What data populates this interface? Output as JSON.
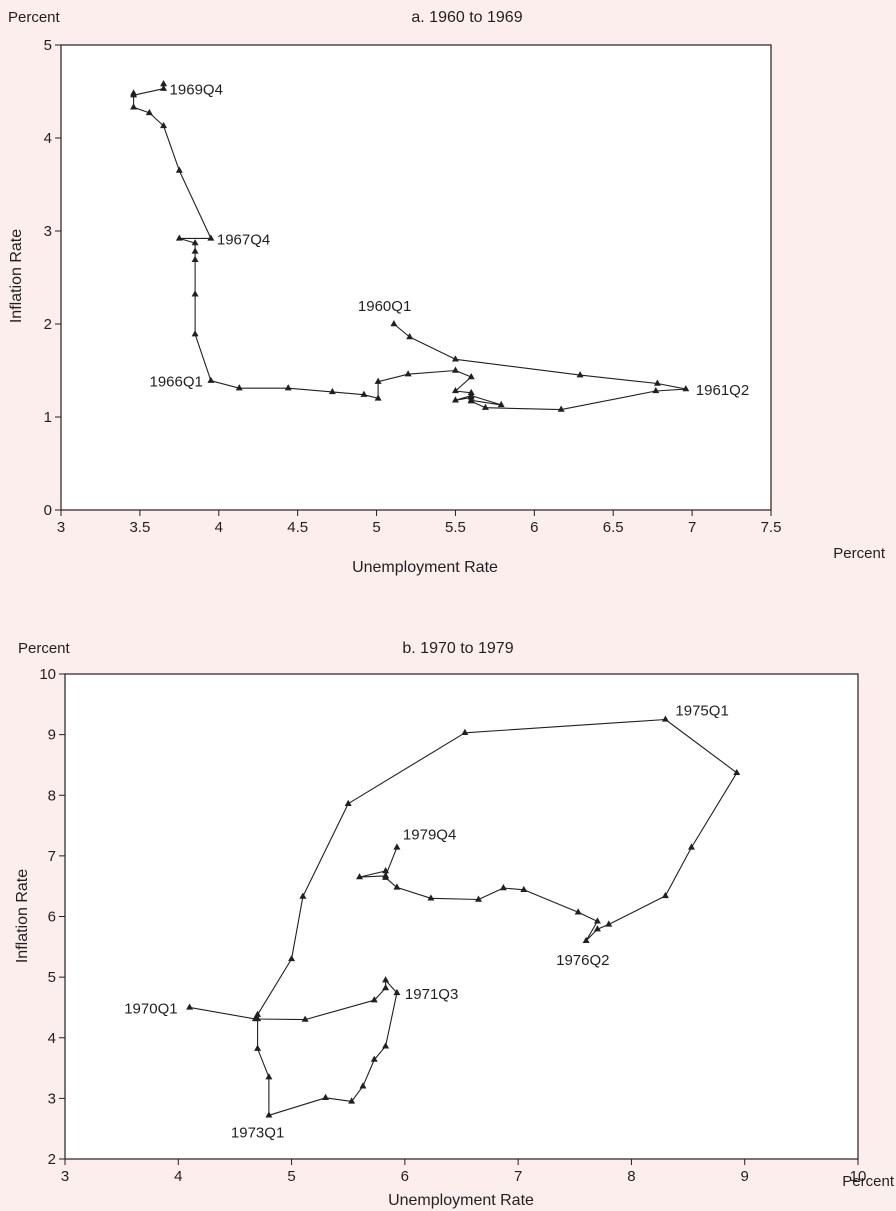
{
  "chart_data": [
    {
      "type": "line",
      "title": "a. 1960 to 1969",
      "xlabel": "Unemployment Rate",
      "ylabel": "Inflation Rate",
      "x_unit": "Percent",
      "y_unit": "Percent",
      "xlim": [
        3,
        7.5
      ],
      "ylim": [
        0,
        5
      ],
      "xticks": [
        3,
        3.5,
        4,
        4.5,
        5,
        5.5,
        6,
        6.5,
        7,
        7.5
      ],
      "yticks": [
        0,
        1,
        2,
        3,
        4,
        5
      ],
      "grid": false,
      "series": [
        {
          "x": [
            5.11,
            5.21,
            5.5,
            6.29,
            6.78,
            6.96,
            6.77,
            6.17,
            5.69,
            5.6,
            5.6,
            5.5,
            5.6,
            5.79,
            5.6,
            5.6,
            5.5,
            5.6,
            5.5,
            5.2,
            5.01,
            5.01,
            4.92,
            4.72,
            4.44,
            4.13,
            3.95,
            3.85,
            3.85,
            3.85,
            3.85,
            3.85,
            3.75,
            3.95,
            3.75,
            3.65,
            3.56,
            3.46,
            3.46,
            3.46,
            3.65,
            3.65
          ],
          "y": [
            2.0,
            1.86,
            1.62,
            1.45,
            1.36,
            1.3,
            1.28,
            1.08,
            1.1,
            1.17,
            1.21,
            1.18,
            1.23,
            1.13,
            1.18,
            1.26,
            1.28,
            1.43,
            1.5,
            1.46,
            1.38,
            1.2,
            1.24,
            1.27,
            1.31,
            1.31,
            1.39,
            1.89,
            2.32,
            2.69,
            2.78,
            2.87,
            2.92,
            2.92,
            3.65,
            4.13,
            4.27,
            4.33,
            4.48,
            4.46,
            4.53,
            4.58
          ]
        }
      ],
      "annotations": [
        {
          "text": "1960Q1",
          "x": 5.11,
          "y": 2.0
        },
        {
          "text": "1961Q2",
          "x": 6.96,
          "y": 1.3
        },
        {
          "text": "1966Q1",
          "x": 3.95,
          "y": 1.39
        },
        {
          "text": "1967Q4",
          "x": 3.95,
          "y": 2.92
        },
        {
          "text": "1969Q4",
          "x": 3.65,
          "y": 4.53
        }
      ]
    },
    {
      "type": "line",
      "title": "b. 1970 to 1979",
      "xlabel": "Unemployment Rate",
      "ylabel": "Inflation Rate",
      "x_unit": "Percent",
      "y_unit": "Percent",
      "xlim": [
        3,
        10
      ],
      "ylim": [
        2,
        10
      ],
      "xticks": [
        3,
        4,
        5,
        6,
        7,
        8,
        9,
        10
      ],
      "yticks": [
        2,
        3,
        4,
        5,
        6,
        7,
        8,
        9,
        10
      ],
      "grid": false,
      "series": [
        {
          "x": [
            4.1,
            4.68,
            5.12,
            5.73,
            5.83,
            5.83,
            5.93,
            5.83,
            5.73,
            5.63,
            5.53,
            5.3,
            4.8,
            4.8,
            4.7,
            4.7,
            4.7,
            5.0,
            5.1,
            5.5,
            6.53,
            8.3,
            8.93,
            8.53,
            8.3,
            7.8,
            7.7,
            7.6,
            7.7,
            7.53,
            7.05,
            6.87,
            6.65,
            6.23,
            5.93,
            5.83,
            5.83,
            5.6,
            5.83,
            5.93
          ],
          "y": [
            4.5,
            4.31,
            4.3,
            4.62,
            4.82,
            4.95,
            4.74,
            3.86,
            3.64,
            3.2,
            2.95,
            3.01,
            2.72,
            3.35,
            3.82,
            4.31,
            4.38,
            5.3,
            6.33,
            7.86,
            9.03,
            9.25,
            8.37,
            7.14,
            6.34,
            5.87,
            5.79,
            5.6,
            5.92,
            6.07,
            6.44,
            6.47,
            6.28,
            6.3,
            6.48,
            6.64,
            6.75,
            6.65,
            6.67,
            7.14
          ]
        }
      ],
      "annotations": [
        {
          "text": "1970Q1",
          "x": 4.1,
          "y": 4.5
        },
        {
          "text": "1971Q3",
          "x": 5.93,
          "y": 4.74
        },
        {
          "text": "1973Q1",
          "x": 4.8,
          "y": 2.72
        },
        {
          "text": "1975Q1",
          "x": 8.3,
          "y": 9.25
        },
        {
          "text": "1976Q2",
          "x": 7.6,
          "y": 5.6
        },
        {
          "text": "1979Q4",
          "x": 5.93,
          "y": 7.14
        }
      ]
    }
  ]
}
